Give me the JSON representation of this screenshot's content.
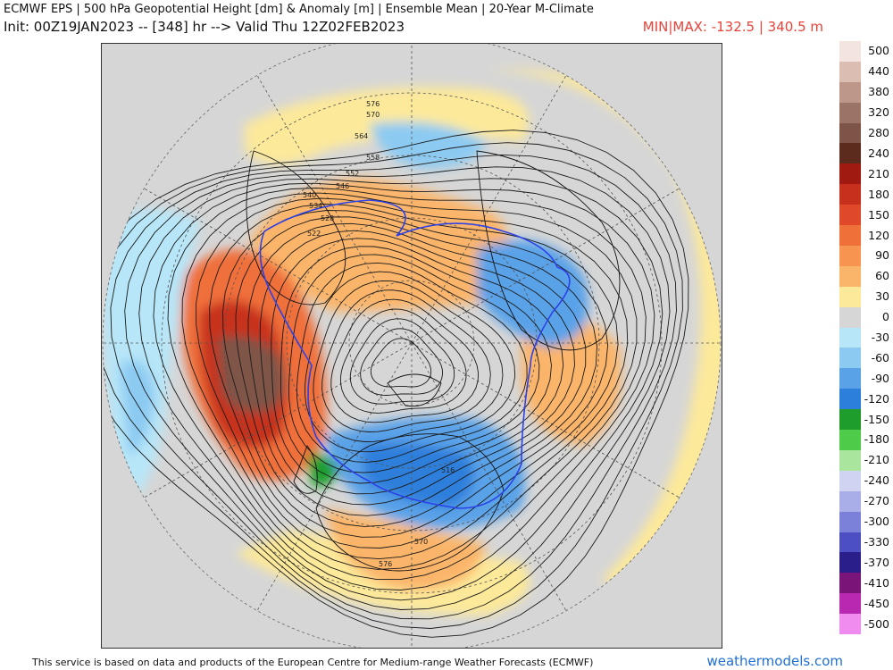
{
  "header": {
    "title": "ECMWF EPS | 500 hPa Geopotential Height [dm] & Anomaly [m] | Ensemble Mean | 20-Year M-Climate",
    "init_line": "Init: 00Z19JAN2023 -- [348] hr --> Valid Thu 12Z02FEB2023",
    "minmax": "MIN|MAX: -132.5 | 340.5 m"
  },
  "legend": [
    {
      "label": "500",
      "color": "#f3e4df"
    },
    {
      "label": "440",
      "color": "#dcbdb1"
    },
    {
      "label": "380",
      "color": "#bc978a"
    },
    {
      "label": "320",
      "color": "#9c7466"
    },
    {
      "label": "280",
      "color": "#7e5447"
    },
    {
      "label": "240",
      "color": "#5d2a1e"
    },
    {
      "label": "210",
      "color": "#a01a12"
    },
    {
      "label": "180",
      "color": "#c7301c"
    },
    {
      "label": "150",
      "color": "#e0482a"
    },
    {
      "label": "120",
      "color": "#f0703a"
    },
    {
      "label": "90",
      "color": "#f79450"
    },
    {
      "label": "60",
      "color": "#fbb56a"
    },
    {
      "label": "30",
      "color": "#fde99a"
    },
    {
      "label": "0",
      "color": "#d6d6d6"
    },
    {
      "label": "-30",
      "color": "#b7e6f8"
    },
    {
      "label": "-60",
      "color": "#8ccaf2"
    },
    {
      "label": "-90",
      "color": "#5aa2e8"
    },
    {
      "label": "-120",
      "color": "#2d7fdc"
    },
    {
      "label": "-150",
      "color": "#1e9c2c"
    },
    {
      "label": "-180",
      "color": "#4fcb4a"
    },
    {
      "label": "-210",
      "color": "#a9e59c"
    },
    {
      "label": "-240",
      "color": "#d0d3f2"
    },
    {
      "label": "-270",
      "color": "#a9aee8"
    },
    {
      "label": "-300",
      "color": "#7b80d9"
    },
    {
      "label": "-330",
      "color": "#4b4fc2"
    },
    {
      "label": "-370",
      "color": "#2a1f8a"
    },
    {
      "label": "-410",
      "color": "#7a1478"
    },
    {
      "label": "-450",
      "color": "#b828b0"
    },
    {
      "label": "-500",
      "color": "#f08cf0"
    }
  ],
  "contour_labels": [
    "576",
    "570",
    "564",
    "558",
    "552",
    "546",
    "540",
    "534",
    "528",
    "522",
    "516",
    "570",
    "576"
  ],
  "colors": {
    "ocean": "#d6d6d6",
    "coast": "#111111",
    "contour": "#1a1a1a",
    "line_546": "#2b42e8",
    "minmax_text": "#e8433a",
    "brand": "#1f6fd6"
  },
  "footer": {
    "note": "This service is based on data and products of the European Centre for Medium-range Weather Forecasts (ECMWF)",
    "brand": "weathermodels.com"
  }
}
